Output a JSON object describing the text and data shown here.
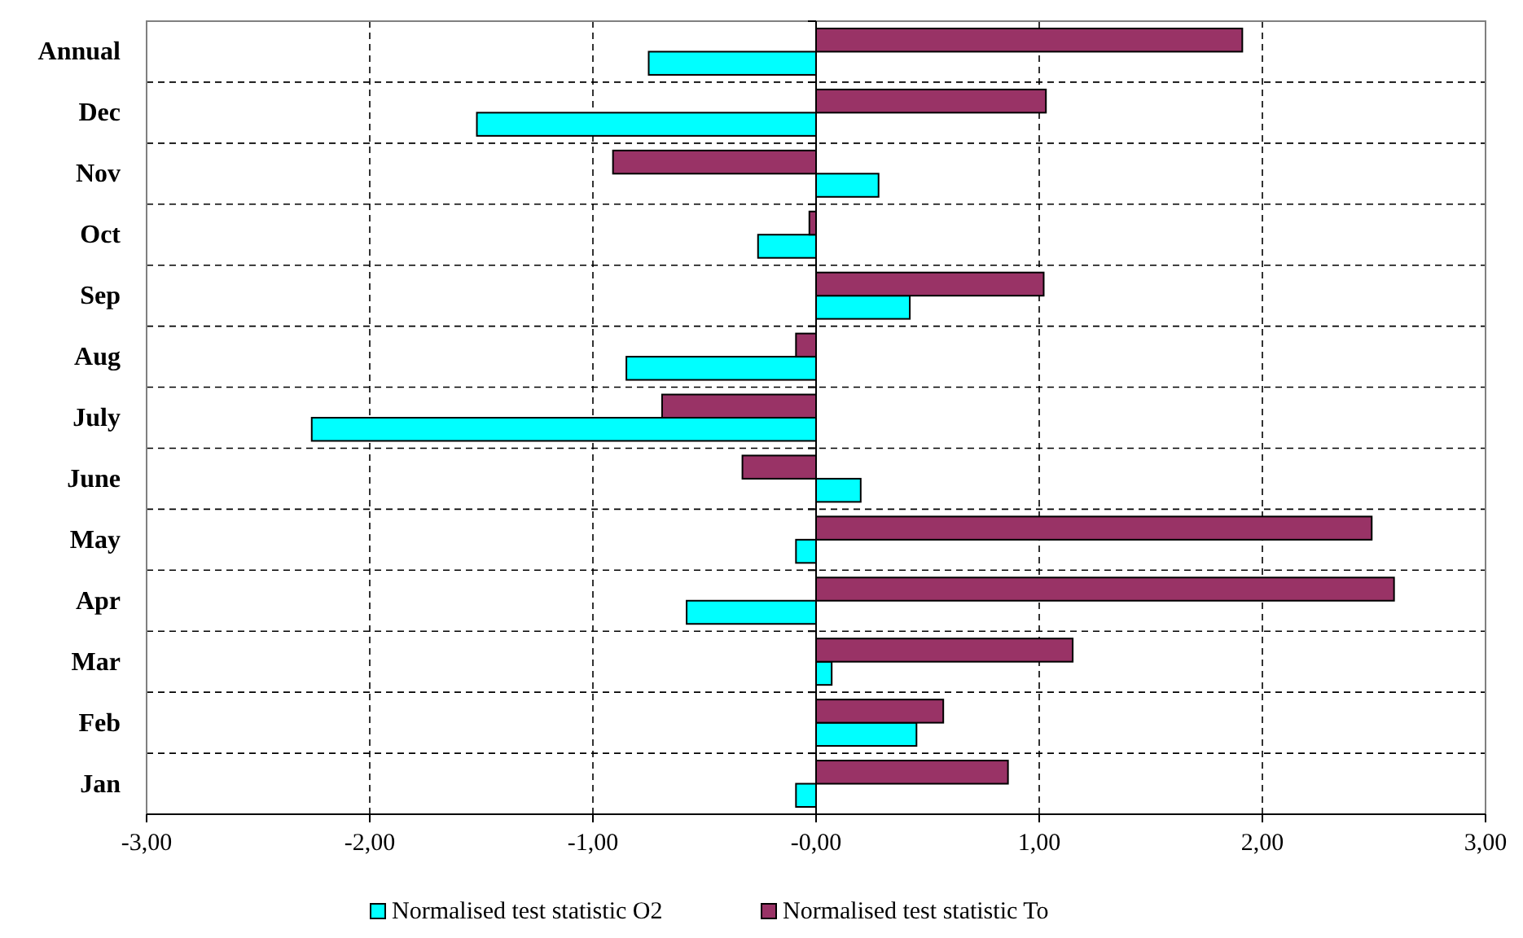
{
  "chart_data": {
    "type": "bar",
    "orientation": "horizontal",
    "categories": [
      "Annual",
      "Dec",
      "Nov",
      "Oct",
      "Sep",
      "Aug",
      "July",
      "June",
      "May",
      "Apr",
      "Mar",
      "Feb",
      "Jan"
    ],
    "series": [
      {
        "name": "Normalised test statistic O2",
        "color": "#00ffff",
        "values": [
          -0.75,
          -1.52,
          0.28,
          -0.26,
          0.42,
          -0.85,
          -2.26,
          0.2,
          -0.09,
          -0.58,
          0.07,
          0.45,
          -0.09
        ]
      },
      {
        "name": "Normalised test statistic To",
        "color": "#993366",
        "values": [
          1.91,
          1.03,
          -0.91,
          -0.03,
          1.02,
          -0.09,
          -0.69,
          -0.33,
          2.49,
          2.59,
          1.15,
          0.57,
          0.86
        ]
      }
    ],
    "xlim": [
      -3,
      3
    ],
    "xticks": [
      {
        "value": -3,
        "label": "-3,00"
      },
      {
        "value": -2,
        "label": "-2,00"
      },
      {
        "value": -1,
        "label": "-1,00"
      },
      {
        "value": 0,
        "label": "-0,00"
      },
      {
        "value": 1,
        "label": "1,00"
      },
      {
        "value": 2,
        "label": "2,00"
      },
      {
        "value": 3,
        "label": "3,00"
      }
    ],
    "grid": true,
    "legend": "bottom"
  }
}
